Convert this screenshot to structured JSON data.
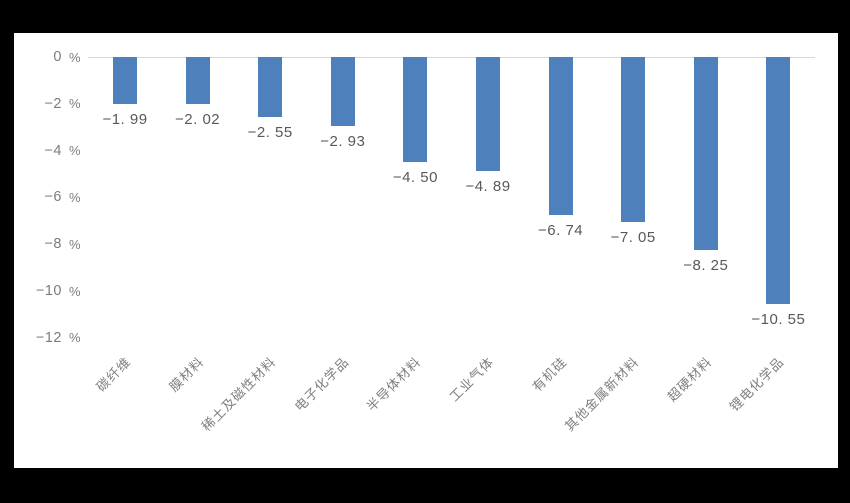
{
  "frame": {
    "background_color": "#000000",
    "canvas_background_color": "#ffffff"
  },
  "chart_data": {
    "type": "bar",
    "title": "",
    "xlabel": "",
    "ylabel": "",
    "categories": [
      "碳纤维",
      "膜材料",
      "稀土及磁性材料",
      "电子化学品",
      "半导体材料",
      "工业气体",
      "有机硅",
      "其他金属新材料",
      "超硬材料",
      "锂电化学品"
    ],
    "values": [
      -1.99,
      -2.02,
      -2.55,
      -2.93,
      -4.5,
      -4.89,
      -6.74,
      -7.05,
      -8.25,
      -10.55
    ],
    "value_labels": [
      "−1. 99",
      "−2. 02",
      "−2. 55",
      "−2. 93",
      "−4. 50",
      "−4. 89",
      "−6. 74",
      "−7. 05",
      "−8. 25",
      "−10. 55"
    ],
    "y_tick_values": [
      0,
      -2,
      -4,
      -6,
      -8,
      -10,
      -12
    ],
    "y_tick_labels": [
      "0",
      "−2",
      "−4",
      "−6",
      "−8",
      "−10",
      "−12"
    ],
    "y_unit": "%",
    "ylim": [
      -12,
      0
    ],
    "grid": "single horizontal line at zero only",
    "legend": "none",
    "bar_color": "#4e80bc",
    "gridline_color": "#d9d9d9",
    "value_label_color": "#595959",
    "axis_label_color": "#7c7c7c",
    "category_label_color": "#7f7f7f"
  }
}
